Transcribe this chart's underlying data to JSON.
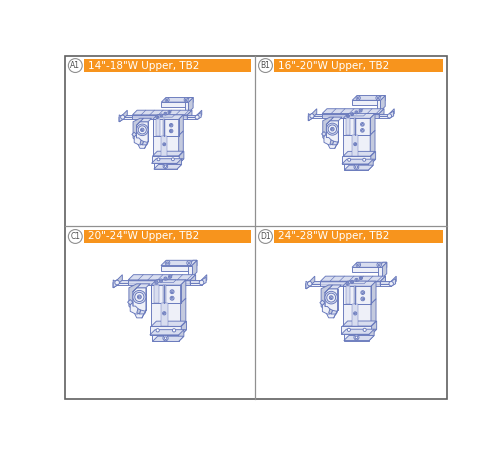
{
  "panels": [
    {
      "id": "A1",
      "label": "14\"-18\"W Upper, TB2"
    },
    {
      "id": "B1",
      "label": "16\"-20\"W Upper, TB2"
    },
    {
      "id": "C1",
      "label": "20\"-24\"W Upper, TB2"
    },
    {
      "id": "D1",
      "label": "24\"-28\"W Upper, TB2"
    }
  ],
  "bg_color": "#ffffff",
  "outer_border_color": "#606060",
  "divider_color": "#909090",
  "label_bg_color": "#F7941D",
  "label_text_color": "#ffffff",
  "id_border_color": "#909090",
  "id_text_color": "#505050",
  "line_color": "#6677bb",
  "fill_light": "#eef0f8",
  "fill_mid": "#d8ddef",
  "fill_dark": "#c4cade",
  "fill_side": "#b8c2d8",
  "lw": 0.65
}
